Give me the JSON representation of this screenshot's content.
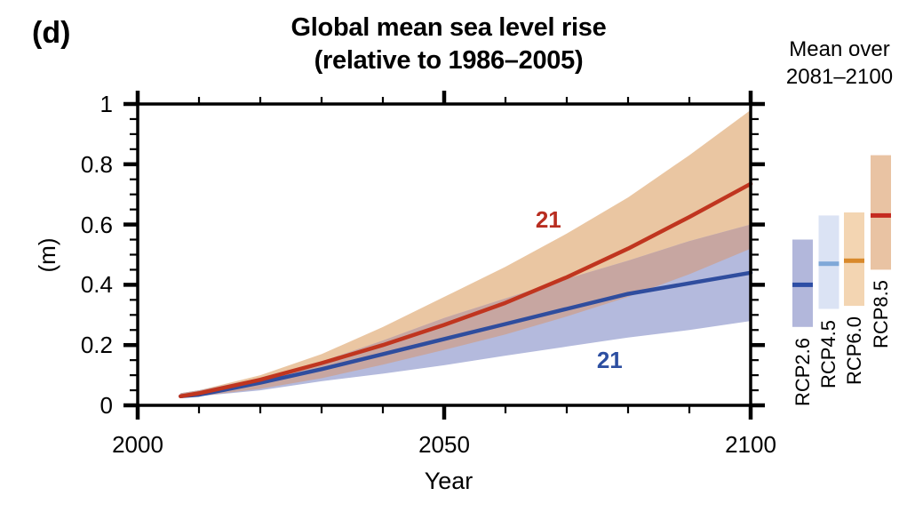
{
  "panel_label": "(d)",
  "title": {
    "line1": "Global mean sea level rise",
    "line2": "(relative to 1986–2005)"
  },
  "right_panel": {
    "heading_line1": "Mean over",
    "heading_line2": "2081–2100"
  },
  "axes": {
    "xlabel": "Year",
    "ylabel": "(m)",
    "xlim": [
      2000,
      2100
    ],
    "ylim": [
      0,
      1
    ],
    "x_major_ticks": [
      2000,
      2050,
      2100
    ],
    "x_tick_labels": [
      "2000",
      "2050",
      "2100"
    ],
    "x_minor_step": 10,
    "y_major_ticks": [
      0,
      0.2,
      0.4,
      0.6,
      0.8,
      1
    ],
    "y_tick_labels": [
      "0",
      "0.2",
      "0.4",
      "0.6",
      "0.8",
      "1"
    ],
    "y_minor_step": 0.05,
    "axis_color": "#000000"
  },
  "chart_data": {
    "type": "line",
    "title": "Global mean sea level rise (relative to 1986–2005)",
    "xlabel": "Year",
    "ylabel": "(m)",
    "xlim": [
      2000,
      2100
    ],
    "ylim": [
      0,
      1
    ],
    "grid": false,
    "x": [
      2007,
      2010,
      2020,
      2030,
      2040,
      2050,
      2060,
      2070,
      2080,
      2090,
      2100
    ],
    "series": [
      {
        "name": "RCP2.6",
        "line_color": "#2f4d9e",
        "band_color": "#b4badd",
        "mean": [
          0.03,
          0.035,
          0.075,
          0.12,
          0.17,
          0.22,
          0.27,
          0.32,
          0.37,
          0.405,
          0.44
        ],
        "upper": [
          0.04,
          0.05,
          0.09,
          0.145,
          0.215,
          0.29,
          0.355,
          0.42,
          0.48,
          0.545,
          0.6
        ],
        "lower": [
          0.025,
          0.03,
          0.05,
          0.08,
          0.105,
          0.133,
          0.165,
          0.195,
          0.225,
          0.25,
          0.28
        ]
      },
      {
        "name": "RCP8.5",
        "line_color": "#c0351f",
        "band_color": "#eac6a2",
        "mean": [
          0.03,
          0.04,
          0.085,
          0.14,
          0.2,
          0.267,
          0.34,
          0.425,
          0.52,
          0.625,
          0.735
        ],
        "upper": [
          0.04,
          0.05,
          0.1,
          0.17,
          0.26,
          0.36,
          0.46,
          0.57,
          0.69,
          0.83,
          0.98
        ],
        "lower": [
          0.025,
          0.03,
          0.055,
          0.09,
          0.135,
          0.184,
          0.235,
          0.295,
          0.36,
          0.435,
          0.52
        ]
      }
    ],
    "band_overlap_color": "#c7a6a1",
    "annotations": [
      {
        "text": "21",
        "color": "#b82d20",
        "x": 2067,
        "y": 0.615
      },
      {
        "text": "21",
        "color": "#2d4fa1",
        "x": 2077,
        "y": 0.147
      }
    ],
    "legend_bars": {
      "period": "2081–2100",
      "items": [
        {
          "label": "RCP2.6",
          "low": 0.26,
          "high": 0.55,
          "mean": 0.4,
          "bar_color": "#b2b7db",
          "line_color": "#2d4ea5"
        },
        {
          "label": "RCP4.5",
          "low": 0.32,
          "high": 0.63,
          "mean": 0.47,
          "bar_color": "#dbe3f4",
          "line_color": "#7fa8d8"
        },
        {
          "label": "RCP6.0",
          "low": 0.33,
          "high": 0.64,
          "mean": 0.48,
          "bar_color": "#f3d5b2",
          "line_color": "#d8892b"
        },
        {
          "label": "RCP8.5",
          "low": 0.45,
          "high": 0.83,
          "mean": 0.63,
          "bar_color": "#e9c3a3",
          "line_color": "#c52b20"
        }
      ]
    }
  }
}
